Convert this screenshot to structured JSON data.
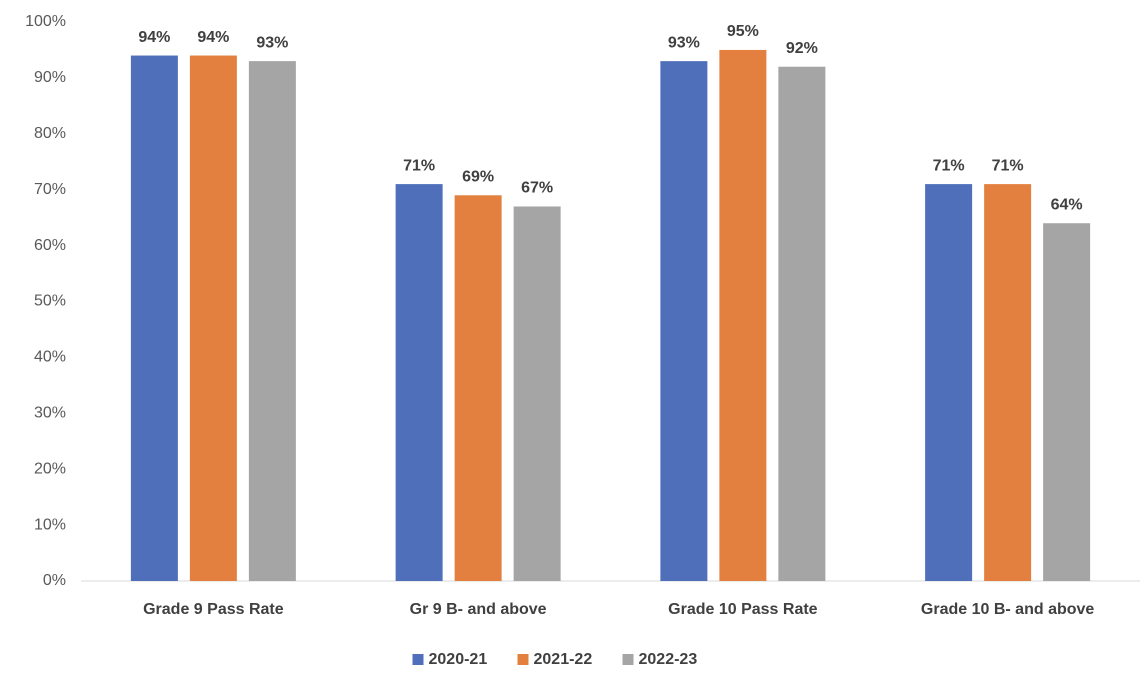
{
  "chart_data": {
    "type": "bar",
    "categories": [
      "Grade 9 Pass Rate",
      "Gr 9 B- and above",
      "Grade 10 Pass Rate",
      "Grade 10 B- and above"
    ],
    "series": [
      {
        "name": "2020-21",
        "color": "#4f6fbb",
        "values": [
          94,
          71,
          93,
          71
        ],
        "value_labels": [
          "94%",
          "71%",
          "93%",
          "71%"
        ]
      },
      {
        "name": "2021-22",
        "color": "#e3803f",
        "values": [
          94,
          69,
          95,
          71
        ],
        "value_labels": [
          "94%",
          "69%",
          "95%",
          "71%"
        ]
      },
      {
        "name": "2022-23",
        "color": "#a5a5a5",
        "values": [
          93,
          67,
          92,
          64
        ],
        "value_labels": [
          "93%",
          "67%",
          "92%",
          "64%"
        ]
      }
    ],
    "ylim": [
      0,
      100
    ],
    "yticks": [
      {
        "value": 0,
        "label": "0%"
      },
      {
        "value": 10,
        "label": "10%"
      },
      {
        "value": 20,
        "label": "20%"
      },
      {
        "value": 30,
        "label": "30%"
      },
      {
        "value": 40,
        "label": "40%"
      },
      {
        "value": 50,
        "label": "50%"
      },
      {
        "value": 60,
        "label": "60%"
      },
      {
        "value": 70,
        "label": "70%"
      },
      {
        "value": 80,
        "label": "80%"
      },
      {
        "value": 90,
        "label": "90%"
      },
      {
        "value": 100,
        "label": "100%"
      }
    ],
    "grid": false,
    "legend": "bottom"
  }
}
